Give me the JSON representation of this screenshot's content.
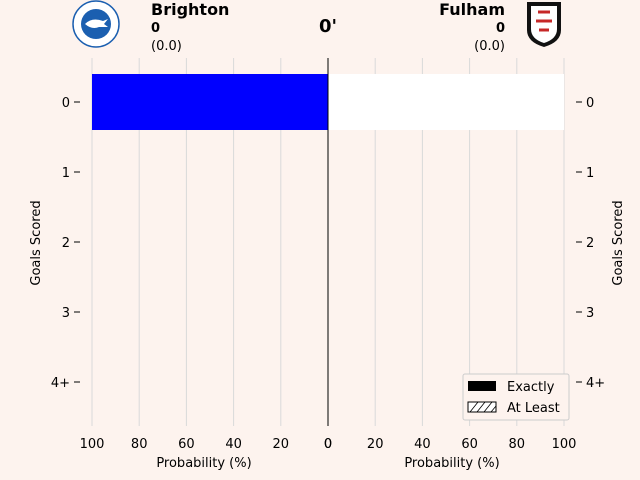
{
  "header": {
    "clock": "0'",
    "home": {
      "name": "Brighton",
      "score": "0",
      "xg": "(0.0)",
      "color": "#1b5fb0"
    },
    "away": {
      "name": "Fulham",
      "score": "0",
      "xg": "(0.0)",
      "color": "#c62828"
    }
  },
  "chart_data": {
    "type": "bar",
    "orientation": "horizontal-mirrored",
    "categories": [
      "0",
      "1",
      "2",
      "3",
      "4+"
    ],
    "ylabel": "Goals Scored",
    "xlabel_left": "Probability (%)",
    "xlabel_right": "Probability (%)",
    "xlim": [
      0,
      100
    ],
    "xticks": [
      0,
      20,
      40,
      60,
      80,
      100
    ],
    "grid": "vertical",
    "series": [
      {
        "team": "Brighton",
        "side": "left",
        "kind": "exactly",
        "color": "#0000ff",
        "values": [
          100,
          0,
          0,
          0,
          0
        ]
      },
      {
        "team": "Brighton",
        "side": "left",
        "kind": "at_least",
        "color": "#ffffff",
        "values": [
          100,
          0,
          0,
          0,
          0
        ]
      },
      {
        "team": "Fulham",
        "side": "right",
        "kind": "exactly",
        "color": "#ffffff",
        "values": [
          100,
          0,
          0,
          0,
          0
        ]
      },
      {
        "team": "Fulham",
        "side": "right",
        "kind": "at_least",
        "color": "#ffffff",
        "values": [
          100,
          0,
          0,
          0,
          0
        ]
      }
    ],
    "legend": {
      "position": "bottom-right",
      "items": [
        "Exactly",
        "At Least"
      ]
    }
  }
}
